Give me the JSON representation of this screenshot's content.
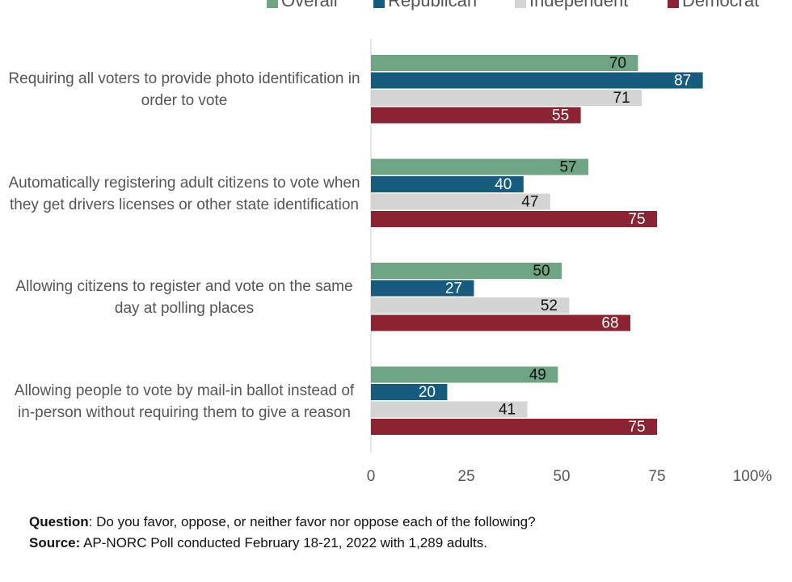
{
  "chart_data": {
    "type": "bar",
    "orientation": "horizontal",
    "categories": [
      "Requiring all voters to provide photo identification in order to vote",
      "Automatically registering adult citizens to vote when they get drivers licenses or other state identification",
      "Allowing citizens to register and vote on the same day at polling places",
      "Allowing people to vote by mail-in ballot instead of in-person without requiring them to give a reason"
    ],
    "series": [
      {
        "name": "Overall",
        "color": "#6ea383",
        "values": [
          70,
          57,
          50,
          49
        ]
      },
      {
        "name": "Republican",
        "color": "#175c7e",
        "values": [
          87,
          40,
          27,
          20
        ]
      },
      {
        "name": "Independent",
        "color": "#d4d4d4",
        "values": [
          71,
          47,
          52,
          41
        ]
      },
      {
        "name": "Democrat",
        "color": "#8b2332",
        "values": [
          55,
          75,
          68,
          75
        ]
      }
    ],
    "xlim": [
      0,
      100
    ],
    "xticks": [
      0,
      25,
      50,
      75,
      {
        "value": 100,
        "label": "100%"
      }
    ],
    "legend": "top"
  },
  "notes": {
    "question_label": "Question",
    "question_text": ": Do you favor, oppose, or neither favor nor oppose each of the following?",
    "source_label": "Source:",
    "source_text": " AP-NORC Poll conducted February 18-21, 2022 with 1,289 adults."
  }
}
